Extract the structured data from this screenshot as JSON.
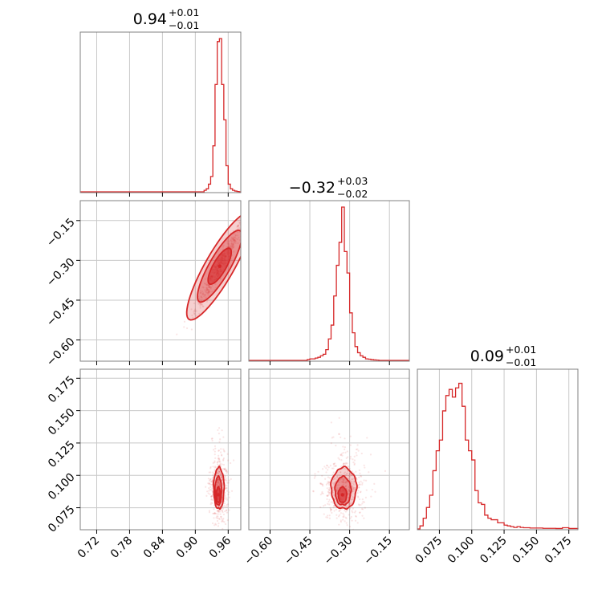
{
  "chart_data": {
    "type": "corner",
    "color": "#d62728",
    "parameters": [
      {
        "axis_range": [
          0.69,
          0.983
        ],
        "ticks": [
          "0.72",
          "0.78",
          "0.84",
          "0.90",
          "0.96"
        ],
        "tick_values": [
          0.72,
          0.78,
          0.84,
          0.9,
          0.96
        ]
      },
      {
        "axis_range": [
          -0.68,
          -0.075
        ],
        "ticks": [
          "−0.60",
          "−0.45",
          "−0.30",
          "−0.15"
        ],
        "tick_values": [
          -0.6,
          -0.45,
          -0.3,
          -0.15
        ]
      },
      {
        "axis_range": [
          0.058,
          0.182
        ],
        "ticks": [
          "0.075",
          "0.100",
          "0.125",
          "0.150",
          "0.175"
        ],
        "tick_values": [
          0.075,
          0.1,
          0.125,
          0.15,
          0.175
        ]
      }
    ],
    "titles": [
      {
        "value": "0.94",
        "plus": "+0.01",
        "minus": "−0.01"
      },
      {
        "value": "−0.32",
        "plus": "+0.03",
        "minus": "−0.02"
      },
      {
        "value": "0.09",
        "plus": "+0.01",
        "minus": "−0.01"
      }
    ],
    "histograms": [
      {
        "param": 0,
        "bin_edges": [
          0.916,
          0.92,
          0.924,
          0.928,
          0.932,
          0.936,
          0.94,
          0.944,
          0.948,
          0.952,
          0.956,
          0.96,
          0.964,
          0.968,
          0.972,
          0.976,
          0.98
        ],
        "counts": [
          0.01,
          0.02,
          0.05,
          0.1,
          0.3,
          0.7,
          0.98,
          1.0,
          0.7,
          0.47,
          0.17,
          0.05,
          0.02,
          0.01,
          0.005,
          0.002
        ]
      },
      {
        "param": 1,
        "bin_edges": [
          -0.46,
          -0.45,
          -0.44,
          -0.43,
          -0.42,
          -0.41,
          -0.4,
          -0.39,
          -0.38,
          -0.37,
          -0.36,
          -0.35,
          -0.34,
          -0.33,
          -0.32,
          -0.31,
          -0.3,
          -0.29,
          -0.28,
          -0.27,
          -0.26,
          -0.25,
          -0.24,
          -0.23,
          -0.22,
          -0.21,
          -0.2,
          -0.19
        ],
        "counts": [
          0.005,
          0.01,
          0.01,
          0.015,
          0.02,
          0.03,
          0.04,
          0.07,
          0.14,
          0.23,
          0.42,
          0.62,
          0.77,
          1.0,
          0.71,
          0.57,
          0.31,
          0.18,
          0.09,
          0.05,
          0.03,
          0.02,
          0.01,
          0.008,
          0.005,
          0.003,
          0.002
        ]
      },
      {
        "param": 2,
        "bin_edges": [
          0.06,
          0.0625,
          0.065,
          0.0675,
          0.07,
          0.0725,
          0.075,
          0.0775,
          0.08,
          0.0825,
          0.085,
          0.0875,
          0.09,
          0.0925,
          0.095,
          0.0975,
          0.1,
          0.1025,
          0.105,
          0.1075,
          0.11,
          0.1125,
          0.115,
          0.1175,
          0.12,
          0.1225,
          0.125,
          0.1275,
          0.13,
          0.1325,
          0.135,
          0.1375,
          0.14,
          0.1425,
          0.145,
          0.15,
          0.155,
          0.16,
          0.165,
          0.17,
          0.175,
          0.182
        ],
        "counts": [
          0.02,
          0.07,
          0.14,
          0.22,
          0.38,
          0.51,
          0.58,
          0.77,
          0.87,
          0.91,
          0.86,
          0.92,
          0.95,
          0.8,
          0.58,
          0.51,
          0.45,
          0.25,
          0.17,
          0.16,
          0.09,
          0.07,
          0.06,
          0.06,
          0.04,
          0.04,
          0.025,
          0.02,
          0.015,
          0.01,
          0.015,
          0.01,
          0.008,
          0.008,
          0.006,
          0.006,
          0.004,
          0.004,
          0.003,
          0.008,
          0.003
        ]
      }
    ],
    "joint_2d": [
      {
        "x_param": 0,
        "y_param": 1,
        "corr_slope": 3.6,
        "contours": [
          {
            "level": 0.39,
            "cx": 0.9445,
            "cy": -0.322,
            "semi_major": 0.03,
            "semi_minor": 0.004
          },
          {
            "level": 0.86,
            "cx": 0.9445,
            "cy": -0.322,
            "semi_major": 0.02,
            "semi_minor": 0.0028
          },
          {
            "level": 0.98,
            "cx": 0.9445,
            "cy": -0.322,
            "semi_major": 0.01,
            "semi_minor": 0.0016
          }
        ]
      },
      {
        "x_param": 0,
        "y_param": 2,
        "contours": [
          {
            "level": 0.39,
            "cx": 0.943,
            "cy": 0.09,
            "rx": 0.0095,
            "ry": 0.016
          },
          {
            "level": 0.86,
            "cx": 0.942,
            "cy": 0.088,
            "rx": 0.006,
            "ry": 0.011
          },
          {
            "level": 0.98,
            "cx": 0.942,
            "cy": 0.085,
            "rx": 0.0035,
            "ry": 0.006
          }
        ]
      },
      {
        "x_param": 1,
        "y_param": 2,
        "contours": [
          {
            "level": 0.39,
            "cx": -0.322,
            "cy": 0.09,
            "rx": 0.048,
            "ry": 0.016
          },
          {
            "level": 0.86,
            "cx": -0.325,
            "cy": 0.088,
            "rx": 0.03,
            "ry": 0.011
          },
          {
            "level": 0.98,
            "cx": -0.327,
            "cy": 0.085,
            "rx": 0.016,
            "ry": 0.006
          }
        ]
      }
    ],
    "grid": true
  }
}
